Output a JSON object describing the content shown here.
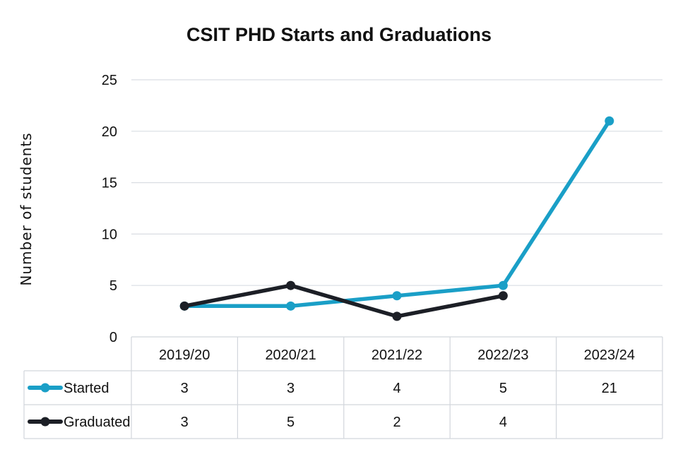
{
  "chart_data": {
    "type": "line",
    "title": "CSIT PHD Starts and Graduations",
    "xlabel": "",
    "ylabel": "Number of students",
    "categories": [
      "2019/20",
      "2020/21",
      "2021/22",
      "2022/23",
      "2023/24"
    ],
    "ylim": [
      0,
      25
    ],
    "yticks": [
      0,
      5,
      10,
      15,
      20,
      25
    ],
    "grid": true,
    "legend": "data-table",
    "series": [
      {
        "name": "Started",
        "color": "#1a9fc7",
        "values": [
          3,
          3,
          4,
          5,
          21
        ],
        "labels": [
          "3",
          "3",
          "4",
          "5",
          "21"
        ]
      },
      {
        "name": "Graduated",
        "color": "#1c1f26",
        "values": [
          3,
          5,
          2,
          4,
          null
        ],
        "labels": [
          "3",
          "5",
          "2",
          "4",
          ""
        ]
      }
    ]
  }
}
